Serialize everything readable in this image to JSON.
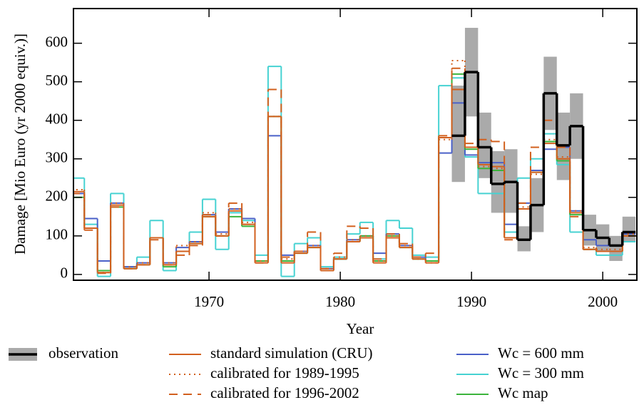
{
  "chart_data": {
    "type": "step",
    "y_label": "Damage [Mio Euro (yr 2000 equiv.)]",
    "x_label": "Year",
    "x": [
      1960,
      1961,
      1962,
      1963,
      1964,
      1965,
      1966,
      1967,
      1968,
      1969,
      1970,
      1971,
      1972,
      1973,
      1974,
      1975,
      1976,
      1977,
      1978,
      1979,
      1980,
      1981,
      1982,
      1983,
      1984,
      1985,
      1986,
      1987,
      1988,
      1989,
      1990,
      1991,
      1992,
      1993,
      1994,
      1995,
      1996,
      1997,
      1998,
      1999,
      2000,
      2001,
      2002
    ],
    "xlim": [
      1959.67,
      2002.6
    ],
    "xticks": [
      1970,
      1980,
      1990,
      2000
    ],
    "ylim": [
      -15,
      690
    ],
    "yticks": [
      0,
      100,
      200,
      300,
      400,
      500,
      600
    ],
    "series": [
      {
        "name": "Wc = 300 mm",
        "color": "#46d2d2",
        "style": "solid",
        "values": [
          250,
          130,
          -5,
          210,
          20,
          45,
          140,
          10,
          60,
          110,
          195,
          65,
          160,
          140,
          50,
          540,
          -5,
          80,
          95,
          20,
          45,
          105,
          135,
          40,
          140,
          120,
          50,
          45,
          490,
          510,
          305,
          210,
          210,
          110,
          250,
          300,
          365,
          285,
          110,
          65,
          50,
          50,
          85
        ]
      },
      {
        "name": "Wc = 600 mm",
        "color": "#4a60c8",
        "style": "solid",
        "values": [
          210,
          145,
          35,
          185,
          20,
          30,
          95,
          30,
          70,
          85,
          155,
          110,
          170,
          145,
          35,
          360,
          50,
          60,
          75,
          15,
          40,
          90,
          100,
          55,
          105,
          75,
          45,
          35,
          315,
          445,
          310,
          290,
          290,
          130,
          185,
          270,
          325,
          330,
          165,
          90,
          75,
          75,
          105
        ]
      },
      {
        "name": "Wc map",
        "color": "#3cb43c",
        "style": "solid",
        "values": [
          200,
          120,
          10,
          175,
          15,
          25,
          95,
          20,
          60,
          80,
          150,
          100,
          150,
          125,
          35,
          410,
          35,
          55,
          70,
          10,
          40,
          85,
          100,
          35,
          100,
          70,
          40,
          35,
          355,
          520,
          325,
          275,
          270,
          95,
          170,
          265,
          345,
          295,
          155,
          65,
          60,
          60,
          100
        ]
      },
      {
        "name": "calibrated for 1996-2002",
        "color": "#d2601e",
        "style": "dashed",
        "values": [
          210,
          115,
          3,
          175,
          15,
          25,
          90,
          25,
          50,
          75,
          155,
          100,
          185,
          130,
          30,
          480,
          45,
          60,
          110,
          15,
          55,
          125,
          120,
          40,
          105,
          80,
          45,
          55,
          360,
          535,
          340,
          350,
          345,
          90,
          185,
          330,
          400,
          330,
          150,
          65,
          60,
          60,
          100
        ]
      },
      {
        "name": "calibrated for 1989-1995",
        "color": "#d2601e",
        "style": "dotted",
        "values": [
          220,
          120,
          5,
          185,
          20,
          30,
          95,
          30,
          75,
          85,
          160,
          105,
          170,
          135,
          35,
          410,
          40,
          60,
          75,
          15,
          45,
          90,
          100,
          35,
          100,
          75,
          40,
          30,
          350,
          555,
          330,
          280,
          275,
          95,
          175,
          260,
          350,
          305,
          165,
          70,
          65,
          65,
          105
        ]
      },
      {
        "name": "standard simulation (CRU)",
        "color": "#d2601e",
        "style": "solid",
        "values": [
          215,
          120,
          5,
          180,
          15,
          25,
          95,
          25,
          60,
          80,
          150,
          100,
          165,
          130,
          30,
          410,
          30,
          55,
          70,
          10,
          40,
          85,
          95,
          30,
          95,
          70,
          40,
          30,
          355,
          480,
          330,
          285,
          280,
          95,
          170,
          265,
          340,
          300,
          160,
          65,
          60,
          60,
          100
        ]
      },
      {
        "name": "observation",
        "color": "#000000",
        "style": "solid",
        "band_color": "#aaaaaa",
        "values": [
          null,
          null,
          null,
          null,
          null,
          null,
          null,
          null,
          null,
          null,
          null,
          null,
          null,
          null,
          null,
          null,
          null,
          null,
          null,
          null,
          null,
          null,
          null,
          null,
          null,
          null,
          null,
          null,
          null,
          360,
          525,
          330,
          235,
          240,
          90,
          180,
          470,
          335,
          385,
          115,
          95,
          75,
          110
        ],
        "lower": [
          null,
          null,
          null,
          null,
          null,
          null,
          null,
          null,
          null,
          null,
          null,
          null,
          null,
          null,
          null,
          null,
          null,
          null,
          null,
          null,
          null,
          null,
          null,
          null,
          null,
          null,
          null,
          null,
          null,
          240,
          410,
          250,
          160,
          160,
          60,
          110,
          375,
          245,
          300,
          75,
          60,
          35,
          85
        ],
        "upper": [
          null,
          null,
          null,
          null,
          null,
          null,
          null,
          null,
          null,
          null,
          null,
          null,
          null,
          null,
          null,
          null,
          null,
          null,
          null,
          null,
          null,
          null,
          null,
          null,
          null,
          null,
          null,
          null,
          null,
          490,
          640,
          420,
          320,
          325,
          125,
          250,
          565,
          420,
          470,
          155,
          130,
          100,
          150
        ]
      }
    ]
  }
}
